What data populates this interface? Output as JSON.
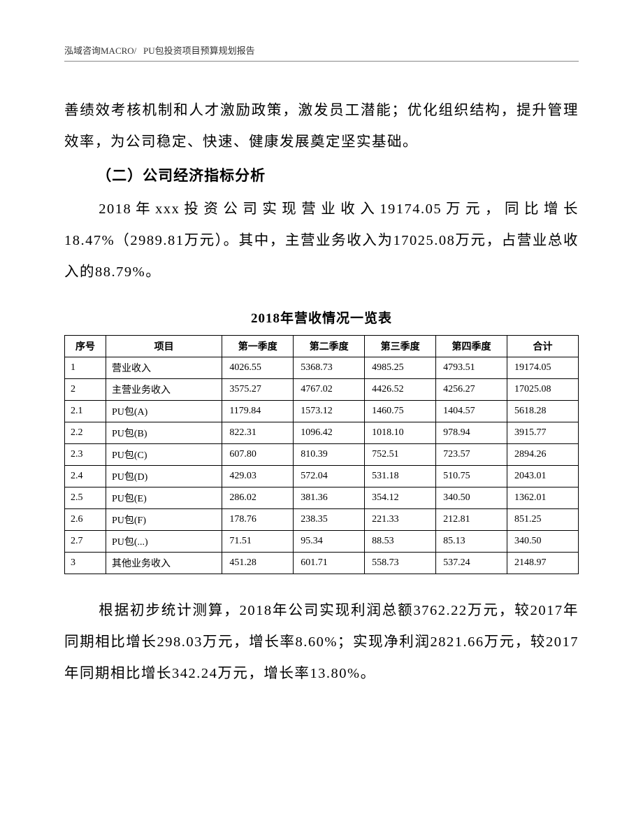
{
  "header": {
    "company": "泓域咨询MACRO/",
    "doc_title": "PU包投资项目预算规划报告"
  },
  "paragraphs": {
    "p1": "善绩效考核机制和人才激励政策，激发员工潜能；优化组织结构，提升管理效率，为公司稳定、快速、健康发展奠定坚实基础。",
    "section_title": "（二）公司经济指标分析",
    "p2": "2018年xxx投资公司实现营业收入19174.05万元，同比增长18.47%（2989.81万元）。其中，主营业务收入为17025.08万元，占营业总收入的88.79%。",
    "p3": "根据初步统计测算，2018年公司实现利润总额3762.22万元，较2017年同期相比增长298.03万元，增长率8.60%；实现净利润2821.66万元，较2017年同期相比增长342.24万元，增长率13.80%。"
  },
  "table": {
    "title": "2018年营收情况一览表",
    "columns": {
      "seq": "序号",
      "item": "项目",
      "q1": "第一季度",
      "q2": "第二季度",
      "q3": "第三季度",
      "q4": "第四季度",
      "total": "合计"
    },
    "rows": [
      {
        "seq": "1",
        "item": "营业收入",
        "q1": "4026.55",
        "q2": "5368.73",
        "q3": "4985.25",
        "q4": "4793.51",
        "total": "19174.05"
      },
      {
        "seq": "2",
        "item": "主营业务收入",
        "q1": "3575.27",
        "q2": "4767.02",
        "q3": "4426.52",
        "q4": "4256.27",
        "total": "17025.08"
      },
      {
        "seq": "2.1",
        "item": "PU包(A)",
        "q1": "1179.84",
        "q2": "1573.12",
        "q3": "1460.75",
        "q4": "1404.57",
        "total": "5618.28"
      },
      {
        "seq": "2.2",
        "item": "PU包(B)",
        "q1": "822.31",
        "q2": "1096.42",
        "q3": "1018.10",
        "q4": "978.94",
        "total": "3915.77"
      },
      {
        "seq": "2.3",
        "item": "PU包(C)",
        "q1": "607.80",
        "q2": "810.39",
        "q3": "752.51",
        "q4": "723.57",
        "total": "2894.26"
      },
      {
        "seq": "2.4",
        "item": "PU包(D)",
        "q1": "429.03",
        "q2": "572.04",
        "q3": "531.18",
        "q4": "510.75",
        "total": "2043.01"
      },
      {
        "seq": "2.5",
        "item": "PU包(E)",
        "q1": "286.02",
        "q2": "381.36",
        "q3": "354.12",
        "q4": "340.50",
        "total": "1362.01"
      },
      {
        "seq": "2.6",
        "item": "PU包(F)",
        "q1": "178.76",
        "q2": "238.35",
        "q3": "221.33",
        "q4": "212.81",
        "total": "851.25"
      },
      {
        "seq": "2.7",
        "item": "PU包(...)",
        "q1": "71.51",
        "q2": "95.34",
        "q3": "88.53",
        "q4": "85.13",
        "total": "340.50"
      },
      {
        "seq": "3",
        "item": "其他业务收入",
        "q1": "451.28",
        "q2": "601.71",
        "q3": "558.73",
        "q4": "537.24",
        "total": "2148.97"
      }
    ],
    "styling": {
      "border_color": "#000000",
      "font_size": 14,
      "header_font_weight": "bold",
      "background_color": "#ffffff",
      "col_widths": {
        "seq": 55,
        "item": 155,
        "q": 95,
        "total": 95
      }
    }
  },
  "text_styling": {
    "body_font_size": 20.5,
    "body_line_height": 2.2,
    "body_letter_spacing": 1.5,
    "section_title_font_size": 21,
    "table_title_font_size": 19,
    "header_font_size": 13,
    "text_color": "#000000",
    "background_color": "#ffffff"
  }
}
